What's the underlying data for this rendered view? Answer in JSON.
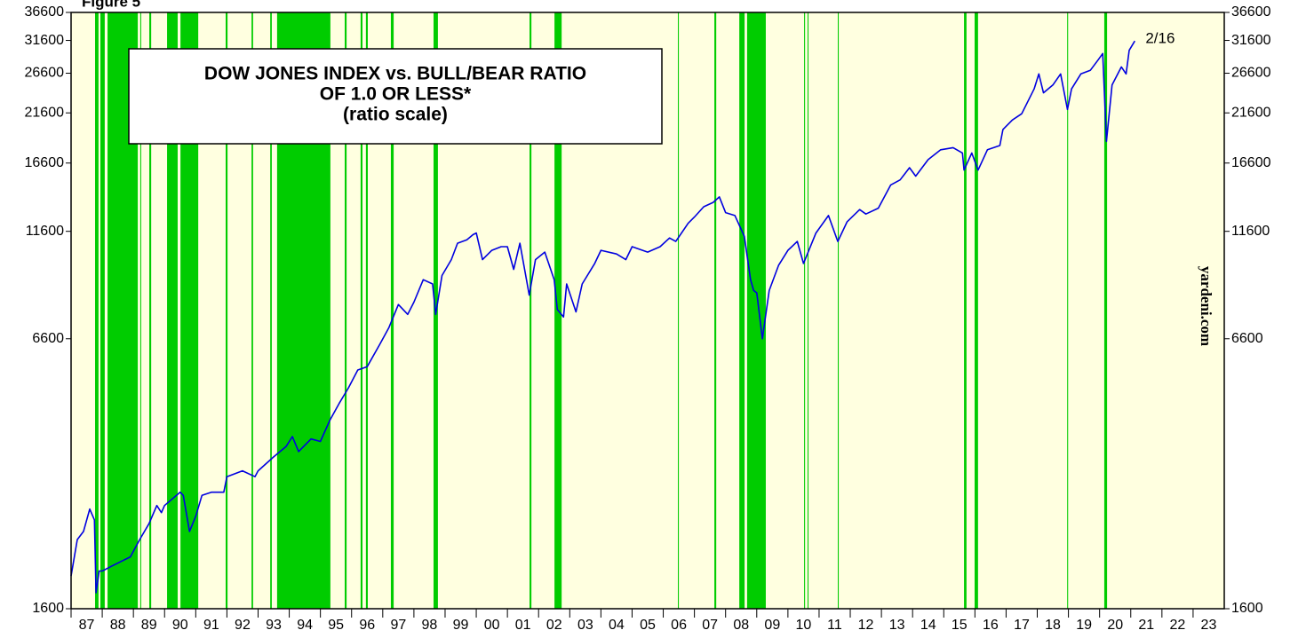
{
  "chart_data": {
    "type": "line",
    "figure_label": "Figure 5",
    "title_lines": [
      "DOW JONES INDEX vs. BULL/BEAR RATIO",
      "OF 1.0 OR LESS*",
      "(ratio scale)"
    ],
    "source": "yardeni.com",
    "annotation": "2/16",
    "log_scale": true,
    "background": "#ffffe0",
    "band_color": "#00cc00",
    "xlim": [
      1987,
      2024
    ],
    "xticks": [
      {
        "value": 1987,
        "label": "87"
      },
      {
        "value": 1988,
        "label": "88"
      },
      {
        "value": 1989,
        "label": "89"
      },
      {
        "value": 1990,
        "label": "90"
      },
      {
        "value": 1991,
        "label": "91"
      },
      {
        "value": 1992,
        "label": "92"
      },
      {
        "value": 1993,
        "label": "93"
      },
      {
        "value": 1994,
        "label": "94"
      },
      {
        "value": 1995,
        "label": "95"
      },
      {
        "value": 1996,
        "label": "96"
      },
      {
        "value": 1997,
        "label": "97"
      },
      {
        "value": 1998,
        "label": "98"
      },
      {
        "value": 1999,
        "label": "99"
      },
      {
        "value": 2000,
        "label": "00"
      },
      {
        "value": 2001,
        "label": "01"
      },
      {
        "value": 2002,
        "label": "02"
      },
      {
        "value": 2003,
        "label": "03"
      },
      {
        "value": 2004,
        "label": "04"
      },
      {
        "value": 2005,
        "label": "05"
      },
      {
        "value": 2006,
        "label": "06"
      },
      {
        "value": 2007,
        "label": "07"
      },
      {
        "value": 2008,
        "label": "08"
      },
      {
        "value": 2009,
        "label": "09"
      },
      {
        "value": 2010,
        "label": "10"
      },
      {
        "value": 2011,
        "label": "11"
      },
      {
        "value": 2012,
        "label": "12"
      },
      {
        "value": 2013,
        "label": "13"
      },
      {
        "value": 2014,
        "label": "14"
      },
      {
        "value": 2015,
        "label": "15"
      },
      {
        "value": 2016,
        "label": "16"
      },
      {
        "value": 2017,
        "label": "17"
      },
      {
        "value": 2018,
        "label": "18"
      },
      {
        "value": 2019,
        "label": "19"
      },
      {
        "value": 2020,
        "label": "20"
      },
      {
        "value": 2021,
        "label": "21"
      },
      {
        "value": 2022,
        "label": "22"
      },
      {
        "value": 2023,
        "label": "23"
      }
    ],
    "ylim": [
      1600,
      36600
    ],
    "yticks": [
      1600,
      6600,
      11600,
      16600,
      21600,
      26600,
      31600,
      36600
    ],
    "bands": [
      [
        1987.77,
        1987.88
      ],
      [
        1987.94,
        1988.08
      ],
      [
        1988.17,
        1989.14
      ],
      [
        1989.22,
        1989.25
      ],
      [
        1989.51,
        1989.57
      ],
      [
        1990.08,
        1990.42
      ],
      [
        1990.51,
        1991.08
      ],
      [
        1991.96,
        1992.02
      ],
      [
        1992.79,
        1992.84
      ],
      [
        1993.39,
        1993.44
      ],
      [
        1993.61,
        1995.32
      ],
      [
        1995.78,
        1995.84
      ],
      [
        1996.29,
        1996.35
      ],
      [
        1996.46,
        1996.52
      ],
      [
        1997.26,
        1997.35
      ],
      [
        1998.63,
        1998.77
      ],
      [
        2001.71,
        2001.77
      ],
      [
        2002.51,
        2002.74
      ],
      [
        2006.47,
        2006.5
      ],
      [
        2007.64,
        2007.7
      ],
      [
        2008.44,
        2008.61
      ],
      [
        2008.69,
        2009.29
      ],
      [
        2010.52,
        2010.55
      ],
      [
        2010.63,
        2010.66
      ],
      [
        2011.6,
        2011.63
      ],
      [
        2015.65,
        2015.73
      ],
      [
        2015.99,
        2016.1
      ],
      [
        2018.96,
        2018.99
      ],
      [
        2020.15,
        2020.24
      ]
    ],
    "series": [
      {
        "name": "Dow Jones Index",
        "color": "#0000e0",
        "x": [
          1987.0,
          1987.2,
          1987.4,
          1987.6,
          1987.75,
          1987.8,
          1987.9,
          1988.0,
          1988.3,
          1988.6,
          1988.9,
          1989.2,
          1989.5,
          1989.75,
          1989.9,
          1990.0,
          1990.5,
          1990.6,
          1990.8,
          1991.0,
          1991.2,
          1991.5,
          1991.9,
          1992.0,
          1992.5,
          1992.9,
          1993.0,
          1993.5,
          1993.9,
          1994.1,
          1994.3,
          1994.7,
          1995.0,
          1995.3,
          1995.6,
          1995.9,
          1996.2,
          1996.5,
          1996.9,
          1997.2,
          1997.5,
          1997.8,
          1998.0,
          1998.3,
          1998.6,
          1998.7,
          1998.9,
          1999.2,
          1999.4,
          1999.7,
          1999.9,
          2000.0,
          2000.2,
          2000.5,
          2000.8,
          2001.0,
          2001.2,
          2001.4,
          2001.7,
          2001.9,
          2002.2,
          2002.5,
          2002.6,
          2002.8,
          2002.9,
          2003.2,
          2003.4,
          2003.8,
          2004.0,
          2004.5,
          2004.8,
          2005.0,
          2005.5,
          2005.9,
          2006.2,
          2006.4,
          2006.8,
          2007.0,
          2007.3,
          2007.6,
          2007.8,
          2008.0,
          2008.3,
          2008.6,
          2008.8,
          2008.9,
          2009.0,
          2009.18,
          2009.4,
          2009.7,
          2010.0,
          2010.3,
          2010.5,
          2010.9,
          2011.3,
          2011.6,
          2011.9,
          2012.3,
          2012.5,
          2012.9,
          2013.3,
          2013.6,
          2013.9,
          2014.1,
          2014.5,
          2014.9,
          2015.3,
          2015.6,
          2015.65,
          2015.9,
          2016.1,
          2016.4,
          2016.8,
          2016.9,
          2017.2,
          2017.5,
          2017.9,
          2018.05,
          2018.2,
          2018.5,
          2018.75,
          2018.97,
          2019.1,
          2019.4,
          2019.7,
          2019.95,
          2020.1,
          2020.22,
          2020.4,
          2020.7,
          2020.85,
          2020.95,
          2021.13
        ],
        "values": [
          1900,
          2300,
          2400,
          2700,
          2550,
          1740,
          1950,
          1950,
          2000,
          2050,
          2100,
          2300,
          2500,
          2750,
          2650,
          2750,
          2950,
          2900,
          2400,
          2600,
          2900,
          2950,
          2950,
          3200,
          3300,
          3200,
          3300,
          3550,
          3750,
          3950,
          3650,
          3900,
          3850,
          4300,
          4700,
          5100,
          5600,
          5700,
          6400,
          7000,
          7900,
          7500,
          8000,
          9000,
          8800,
          7500,
          9200,
          10000,
          10900,
          11100,
          11400,
          11500,
          10000,
          10500,
          10700,
          10700,
          9500,
          10900,
          8300,
          10000,
          10400,
          9000,
          7700,
          7400,
          8800,
          7600,
          8800,
          9800,
          10500,
          10300,
          10000,
          10700,
          10400,
          10700,
          11200,
          11000,
          12100,
          12500,
          13200,
          13500,
          13900,
          12800,
          12600,
          11300,
          9000,
          8500,
          8400,
          6600,
          8500,
          9700,
          10500,
          11000,
          9800,
          11500,
          12600,
          11000,
          12200,
          13000,
          12700,
          13100,
          14800,
          15200,
          16200,
          15500,
          16900,
          17800,
          18000,
          17500,
          16000,
          17500,
          16000,
          17800,
          18200,
          19800,
          20800,
          21500,
          24500,
          26500,
          24000,
          25000,
          26500,
          22000,
          24500,
          26500,
          27000,
          28500,
          29500,
          18600,
          25000,
          27500,
          26500,
          30000,
          31500
        ]
      }
    ]
  }
}
